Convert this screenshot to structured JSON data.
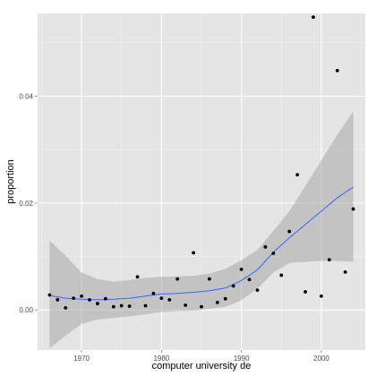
{
  "chart_data": {
    "type": "scatter",
    "xlabel": "computer university de",
    "ylabel": "proportion",
    "xlim": [
      1964.5,
      2005.5
    ],
    "ylim": [
      -0.0075,
      0.0555
    ],
    "x_ticks": [
      1970,
      1980,
      1990,
      2000
    ],
    "x_tick_labels": [
      "1970",
      "1980",
      "1990",
      "2000"
    ],
    "y_ticks": [
      0.0,
      0.02,
      0.04
    ],
    "y_tick_labels": [
      "0.00",
      "0.02",
      "0.04"
    ],
    "grid": true,
    "colors": {
      "panel_background": "#e5e5e5",
      "grid_major": "#ffffff",
      "grid_minor": "#f0f0f0",
      "points": "#000000",
      "smooth_line": "#3366ff",
      "confidence_band": "#999999"
    },
    "series": [
      {
        "kind": "points",
        "x": [
          1966,
          1967,
          1968,
          1969,
          1970,
          1971,
          1972,
          1973,
          1974,
          1975,
          1976,
          1977,
          1978,
          1979,
          1980,
          1981,
          1982,
          1983,
          1984,
          1985,
          1986,
          1987,
          1988,
          1989,
          1990,
          1991,
          1992,
          1993,
          1994,
          1995,
          1996,
          1997,
          1998,
          1999,
          2000,
          2001,
          2002,
          2003,
          2004
        ],
        "y": [
          0.0028,
          0.0019,
          0.0004,
          0.0022,
          0.0026,
          0.0019,
          0.0012,
          0.0021,
          0.0006,
          0.0008,
          0.0007,
          0.0062,
          0.0008,
          0.0031,
          0.0022,
          0.0019,
          0.0058,
          0.0009,
          0.0107,
          0.0006,
          0.0058,
          0.0014,
          0.0021,
          0.0045,
          0.0076,
          0.0057,
          0.0037,
          0.0118,
          0.0106,
          0.0065,
          0.0147,
          0.0253,
          0.0034,
          0.0548,
          0.0026,
          0.0094,
          0.0448,
          0.0071,
          0.0189
        ]
      },
      {
        "kind": "smooth",
        "x": [
          1966,
          1968,
          1970,
          1972,
          1974,
          1976,
          1978,
          1980,
          1982,
          1984,
          1986,
          1988,
          1990,
          1992,
          1994,
          1996,
          1998,
          2000,
          2002,
          2004
        ],
        "y": [
          0.0027,
          0.0022,
          0.002,
          0.0019,
          0.002,
          0.0022,
          0.0026,
          0.003,
          0.0031,
          0.0033,
          0.0036,
          0.0041,
          0.0055,
          0.0075,
          0.0108,
          0.0135,
          0.016,
          0.0185,
          0.021,
          0.023
        ],
        "lower": [
          -0.0072,
          -0.0048,
          -0.0026,
          -0.0018,
          -0.0015,
          -0.0012,
          -0.0008,
          -0.0004,
          -0.0002,
          -0.0001,
          0.0002,
          0.0006,
          0.0018,
          0.004,
          0.007,
          0.0088,
          0.009,
          0.0092,
          0.0092,
          0.009
        ],
        "upper": [
          0.013,
          0.0102,
          0.007,
          0.0058,
          0.0053,
          0.0056,
          0.006,
          0.0062,
          0.0063,
          0.0064,
          0.0068,
          0.0077,
          0.0093,
          0.0112,
          0.0148,
          0.0185,
          0.0232,
          0.028,
          0.0328,
          0.0372
        ]
      }
    ]
  }
}
